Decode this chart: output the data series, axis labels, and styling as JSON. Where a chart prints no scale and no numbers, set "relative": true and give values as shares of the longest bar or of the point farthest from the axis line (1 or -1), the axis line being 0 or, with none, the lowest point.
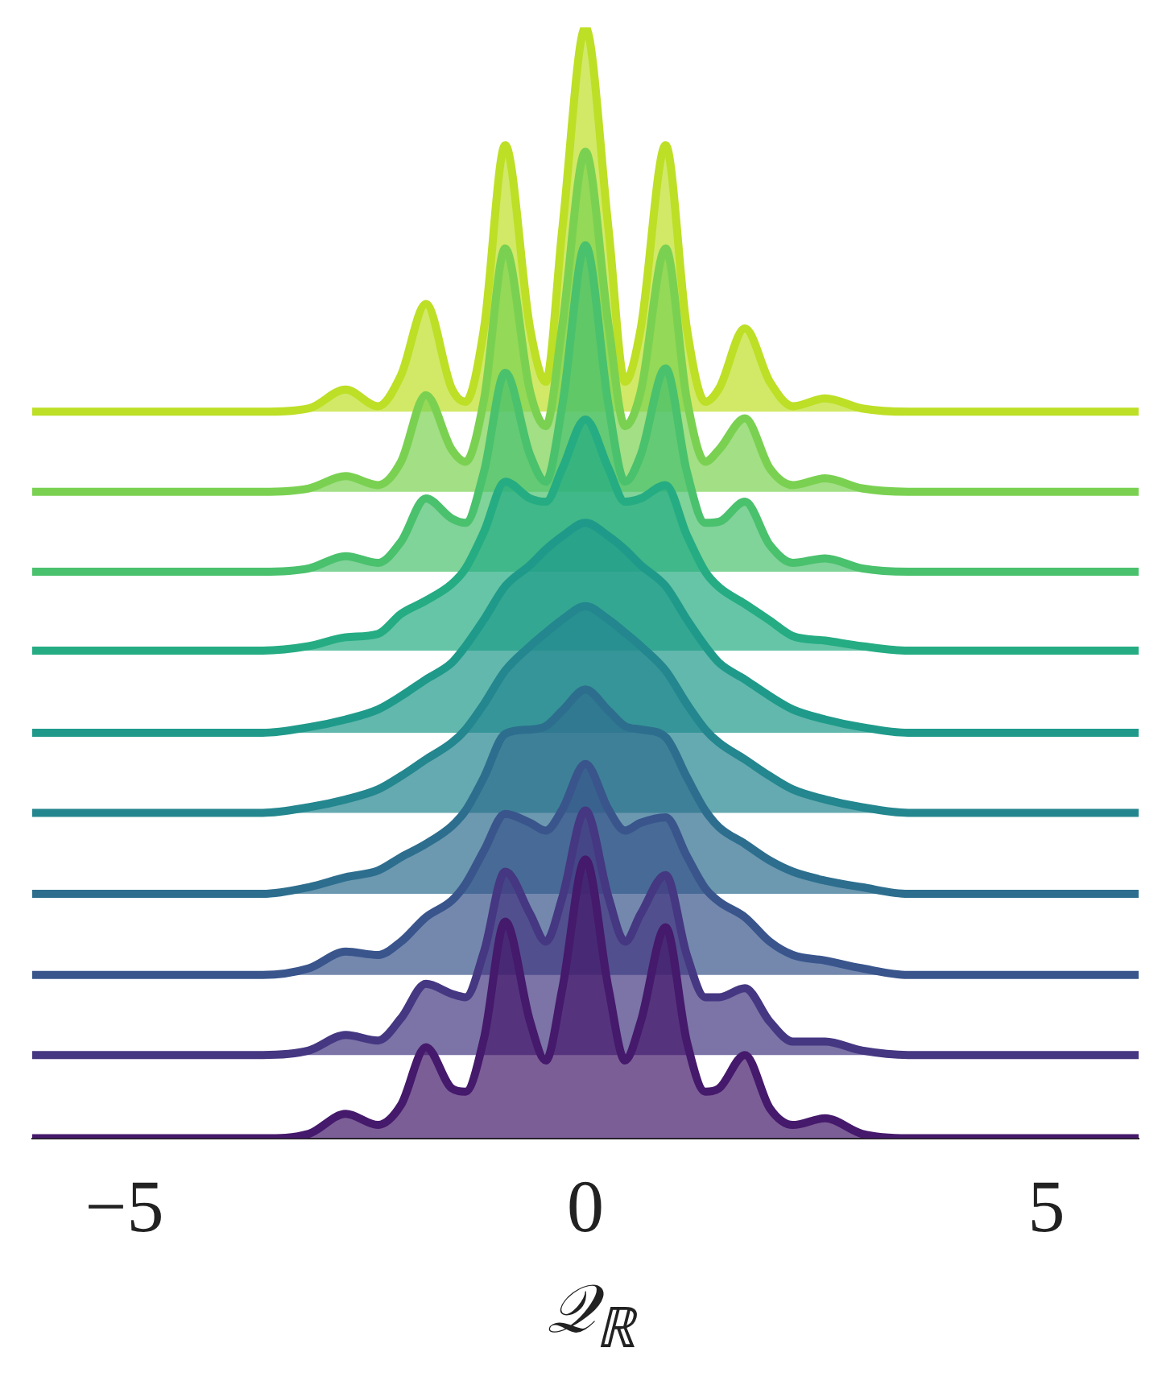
{
  "chart_data": {
    "type": "area",
    "relative": true,
    "xlabel": "𝒬$_{ℝ}$",
    "x": [
      -6,
      -3.5,
      -3.0,
      -2.6,
      -2.25,
      -2.0,
      -1.73,
      -1.45,
      -1.3,
      -1.1,
      -0.87,
      -0.6,
      -0.43,
      -0.25,
      0,
      0.25,
      0.43,
      0.6,
      0.87,
      1.1,
      1.3,
      1.45,
      1.73,
      2.0,
      2.25,
      2.6,
      3.0,
      3.5,
      6
    ],
    "xlim": [
      -6,
      6
    ],
    "xticks": [
      -5,
      0,
      5
    ],
    "grid": false,
    "legend": false,
    "marker": "none",
    "line_style": "solid",
    "series": [
      {
        "color": "#45196b",
        "values": [
          0,
          0,
          0.004,
          0.022,
          0.012,
          0.03,
          0.082,
          0.045,
          0.042,
          0.09,
          0.195,
          0.105,
          0.07,
          0.135,
          0.251,
          0.135,
          0.07,
          0.105,
          0.19,
          0.087,
          0.042,
          0.045,
          0.075,
          0.027,
          0.012,
          0.018,
          0.004,
          0,
          0
        ]
      },
      {
        "color": "#453781",
        "values": [
          0.075,
          0.075,
          0.079,
          0.093,
          0.088,
          0.108,
          0.139,
          0.13,
          0.127,
          0.168,
          0.24,
          0.202,
          0.177,
          0.217,
          0.295,
          0.217,
          0.177,
          0.202,
          0.237,
          0.165,
          0.127,
          0.127,
          0.135,
          0.105,
          0.087,
          0.087,
          0.079,
          0.075,
          0.075
        ]
      },
      {
        "color": "#39558c",
        "values": [
          0.147,
          0.147,
          0.153,
          0.168,
          0.165,
          0.177,
          0.199,
          0.214,
          0.229,
          0.259,
          0.292,
          0.284,
          0.277,
          0.296,
          0.337,
          0.296,
          0.277,
          0.284,
          0.289,
          0.254,
          0.225,
          0.213,
          0.199,
          0.177,
          0.165,
          0.16,
          0.153,
          0.147,
          0.147
        ]
      },
      {
        "color": "#2d6e8e",
        "values": [
          0.22,
          0.22,
          0.226,
          0.235,
          0.241,
          0.253,
          0.265,
          0.281,
          0.295,
          0.325,
          0.364,
          0.368,
          0.371,
          0.385,
          0.404,
          0.385,
          0.371,
          0.368,
          0.361,
          0.325,
          0.295,
          0.28,
          0.265,
          0.25,
          0.24,
          0.232,
          0.226,
          0.22,
          0.22
        ]
      },
      {
        "color": "#24868e",
        "values": [
          0.293,
          0.293,
          0.298,
          0.305,
          0.314,
          0.326,
          0.341,
          0.356,
          0.368,
          0.391,
          0.421,
          0.443,
          0.455,
          0.467,
          0.479,
          0.467,
          0.455,
          0.443,
          0.421,
          0.391,
          0.368,
          0.356,
          0.341,
          0.326,
          0.314,
          0.305,
          0.298,
          0.293,
          0.293
        ]
      },
      {
        "color": "#1f9a8a",
        "values": [
          0.365,
          0.365,
          0.37,
          0.377,
          0.386,
          0.398,
          0.413,
          0.428,
          0.443,
          0.467,
          0.497,
          0.516,
          0.53,
          0.542,
          0.554,
          0.542,
          0.53,
          0.516,
          0.497,
          0.467,
          0.443,
          0.428,
          0.413,
          0.398,
          0.386,
          0.377,
          0.37,
          0.365,
          0.365
        ]
      },
      {
        "color": "#25ac82",
        "values": [
          0.439,
          0.439,
          0.443,
          0.451,
          0.454,
          0.472,
          0.484,
          0.499,
          0.513,
          0.546,
          0.591,
          0.576,
          0.573,
          0.603,
          0.647,
          0.603,
          0.573,
          0.576,
          0.588,
          0.543,
          0.51,
          0.496,
          0.481,
          0.466,
          0.452,
          0.448,
          0.443,
          0.439,
          0.439
        ]
      },
      {
        "color": "#4ac16d",
        "values": [
          0.51,
          0.51,
          0.513,
          0.524,
          0.518,
          0.537,
          0.576,
          0.558,
          0.554,
          0.6,
          0.689,
          0.615,
          0.591,
          0.66,
          0.804,
          0.66,
          0.591,
          0.615,
          0.693,
          0.6,
          0.554,
          0.555,
          0.573,
          0.534,
          0.518,
          0.522,
          0.513,
          0.51,
          0.51
        ]
      },
      {
        "color": "#7ad151",
        "values": [
          0.582,
          0.582,
          0.585,
          0.596,
          0.588,
          0.609,
          0.669,
          0.62,
          0.609,
          0.665,
          0.801,
          0.672,
          0.641,
          0.732,
          0.888,
          0.732,
          0.641,
          0.672,
          0.801,
          0.665,
          0.609,
          0.62,
          0.648,
          0.603,
          0.588,
          0.594,
          0.585,
          0.582,
          0.582
        ]
      },
      {
        "color": "#bddf26",
        "values": [
          0.654,
          0.654,
          0.657,
          0.674,
          0.659,
          0.687,
          0.751,
          0.675,
          0.663,
          0.729,
          0.894,
          0.729,
          0.681,
          0.819,
          1,
          0.819,
          0.681,
          0.729,
          0.894,
          0.729,
          0.663,
          0.675,
          0.729,
          0.681,
          0.659,
          0.666,
          0.657,
          0.654,
          0.654
        ]
      }
    ]
  }
}
